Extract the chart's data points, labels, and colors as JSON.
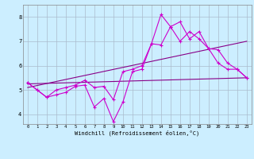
{
  "xlabel": "Windchill (Refroidissement éolien,°C)",
  "background_color": "#cceeff",
  "grid_color": "#aabbcc",
  "line_color1": "#cc00cc",
  "line_color2": "#880088",
  "xlim": [
    -0.5,
    23.5
  ],
  "ylim": [
    3.6,
    8.5
  ],
  "yticks": [
    4,
    5,
    6,
    7,
    8
  ],
  "xticks": [
    0,
    1,
    2,
    3,
    4,
    5,
    6,
    7,
    8,
    9,
    10,
    11,
    12,
    13,
    14,
    15,
    16,
    17,
    18,
    19,
    20,
    21,
    22,
    23
  ],
  "series1_x": [
    0,
    1,
    2,
    3,
    4,
    5,
    6,
    7,
    8,
    9,
    10,
    11,
    12,
    13,
    14,
    15,
    16,
    17,
    18,
    19,
    20,
    21,
    22,
    23
  ],
  "series1_y": [
    5.3,
    5.0,
    4.7,
    4.8,
    4.9,
    5.15,
    5.2,
    4.3,
    4.65,
    3.7,
    4.5,
    5.75,
    5.85,
    6.9,
    8.1,
    7.6,
    7.8,
    7.1,
    7.4,
    6.7,
    6.1,
    5.85,
    5.85,
    5.5
  ],
  "series2_x": [
    0,
    1,
    2,
    3,
    4,
    5,
    6,
    7,
    8,
    9,
    10,
    11,
    12,
    13,
    14,
    15,
    16,
    17,
    18,
    19,
    20,
    21,
    22,
    23
  ],
  "series2_y": [
    5.3,
    5.0,
    4.7,
    5.0,
    5.1,
    5.2,
    5.4,
    5.1,
    5.15,
    4.6,
    5.75,
    5.85,
    6.0,
    6.9,
    6.85,
    7.6,
    7.0,
    7.4,
    7.1,
    6.7,
    6.65,
    6.1,
    5.85,
    5.5
  ],
  "trend1_x": [
    0,
    23
  ],
  "trend1_y": [
    5.25,
    5.5
  ],
  "trend2_x": [
    0,
    23
  ],
  "trend2_y": [
    5.1,
    7.0
  ]
}
